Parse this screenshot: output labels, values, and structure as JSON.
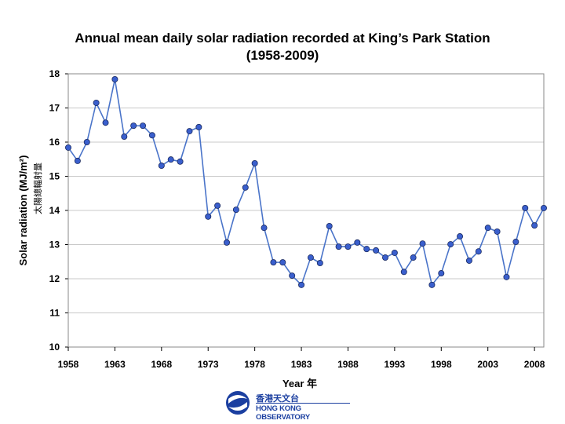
{
  "chart_data": {
    "type": "line",
    "title_line1": "Annual mean daily solar radiation recorded at King’s Park Station",
    "title_line2": "(1958-2009)",
    "xlabel": "Year 年",
    "ylabel": "Solar radiation (MJ/m²)",
    "ylabel_zh": "太陽總輻射量",
    "xlim": [
      1958,
      2009
    ],
    "ylim": [
      10,
      18
    ],
    "xticks": [
      1958,
      1963,
      1968,
      1973,
      1978,
      1983,
      1988,
      1993,
      1998,
      2003,
      2008
    ],
    "yticks": [
      10,
      11,
      12,
      13,
      14,
      15,
      16,
      17,
      18
    ],
    "grid": "horizontal",
    "line_color": "#4a74c9",
    "marker_color": "#3a5fcd",
    "x": [
      1958,
      1959,
      1960,
      1961,
      1962,
      1963,
      1964,
      1965,
      1966,
      1967,
      1968,
      1969,
      1970,
      1971,
      1972,
      1973,
      1974,
      1975,
      1976,
      1977,
      1978,
      1979,
      1980,
      1981,
      1982,
      1983,
      1984,
      1985,
      1986,
      1987,
      1988,
      1989,
      1990,
      1991,
      1992,
      1993,
      1994,
      1995,
      1996,
      1997,
      1998,
      1999,
      2000,
      2001,
      2002,
      2003,
      2004,
      2005,
      2006,
      2007,
      2008,
      2009
    ],
    "values": [
      15.84,
      15.45,
      16.0,
      17.15,
      16.57,
      17.84,
      16.16,
      16.48,
      16.48,
      16.2,
      15.31,
      15.49,
      15.43,
      16.32,
      16.44,
      13.82,
      14.14,
      13.06,
      14.02,
      14.67,
      15.38,
      13.49,
      12.48,
      12.48,
      12.09,
      11.82,
      12.62,
      12.46,
      13.54,
      12.94,
      12.94,
      13.06,
      12.87,
      12.83,
      12.62,
      12.76,
      12.2,
      12.62,
      13.03,
      11.82,
      12.16,
      13.01,
      13.24,
      12.53,
      12.8,
      13.49,
      13.38,
      12.05,
      13.08,
      14.07,
      13.56,
      14.07
    ]
  },
  "logo": {
    "zh": "香港天文台",
    "en": "HONG KONG OBSERVATORY"
  }
}
